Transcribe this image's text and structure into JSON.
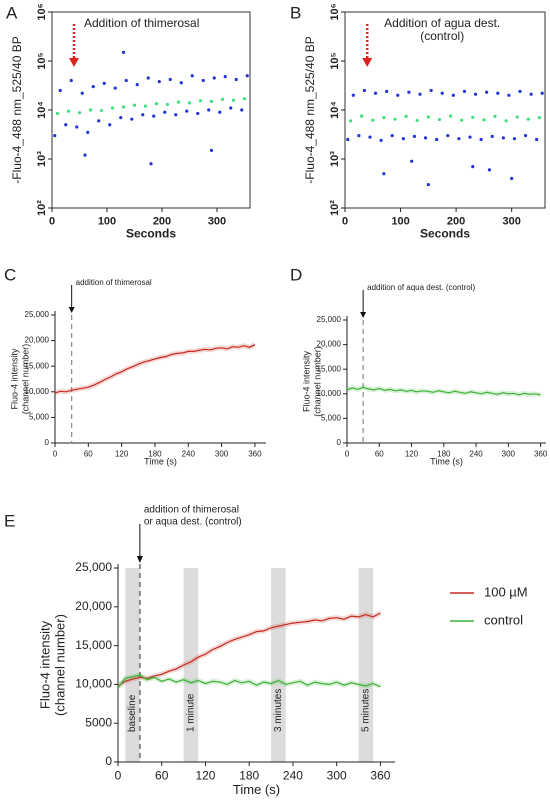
{
  "chart_data": [
    {
      "type": "scatter",
      "panel": "A",
      "annotation": "Addition of thimerosal",
      "arrow_x": 40,
      "frame": true,
      "log_y": true,
      "x_label": "Seconds",
      "y_label": "-Fluo-4_488 nm_525/40 BP",
      "xlim": [
        0,
        360
      ],
      "xticks": [
        0,
        100,
        200,
        300
      ],
      "ylim": [
        100,
        1000000
      ],
      "yticks": [
        {
          "value": 100,
          "label": "10²"
        },
        {
          "value": 1000,
          "label": "10³"
        },
        {
          "value": 10000,
          "label": "10⁴"
        },
        {
          "value": 100000,
          "label": "10⁵"
        },
        {
          "value": 1000000,
          "label": "10⁶"
        }
      ],
      "series": [
        {
          "color": "#1f35d8",
          "x": [
            5,
            15,
            25,
            35,
            45,
            55,
            65,
            75,
            85,
            95,
            105,
            115,
            125,
            135,
            145,
            155,
            165,
            175,
            185,
            195,
            205,
            215,
            225,
            235,
            245,
            255,
            265,
            275,
            285,
            295,
            305,
            315,
            325,
            335,
            345,
            355,
            180,
            290,
            60,
            130
          ],
          "values": [
            3000,
            25000,
            5000,
            40000,
            4500,
            22000,
            3500,
            30000,
            6000,
            35000,
            5000,
            28000,
            7000,
            40000,
            6500,
            33000,
            8000,
            45000,
            7500,
            38000,
            9000,
            42000,
            8000,
            36000,
            9500,
            50000,
            8500,
            40000,
            10000,
            45000,
            9000,
            48000,
            11000,
            42000,
            10000,
            50000,
            800,
            1500,
            1200,
            150000
          ]
        },
        {
          "color": "#3fe07a",
          "x": [
            10,
            30,
            50,
            70,
            90,
            110,
            130,
            150,
            170,
            190,
            210,
            230,
            250,
            270,
            290,
            310,
            330,
            350
          ],
          "values": [
            8500,
            9500,
            8800,
            10000,
            9800,
            11000,
            11500,
            12500,
            12000,
            13500,
            13000,
            14500,
            14000,
            15500,
            15000,
            16500,
            15800,
            17000
          ]
        }
      ]
    },
    {
      "type": "scatter",
      "panel": "B",
      "annotation": [
        "Addition of agua dest.",
        "(control)"
      ],
      "arrow_x": 40,
      "frame": true,
      "log_y": true,
      "x_label": "Seconds",
      "y_label": "-Fluo-4_488 nm_525/40 BP",
      "xlim": [
        0,
        360
      ],
      "xticks": [
        0,
        100,
        200,
        300
      ],
      "ylim": [
        100,
        1000000
      ],
      "yticks": [
        {
          "value": 100,
          "label": "10²"
        },
        {
          "value": 1000,
          "label": "10³"
        },
        {
          "value": 10000,
          "label": "10⁴"
        },
        {
          "value": 100000,
          "label": "10⁵"
        },
        {
          "value": 1000000,
          "label": "10⁶"
        }
      ],
      "series": [
        {
          "color": "#1f35d8",
          "x": [
            5,
            15,
            25,
            35,
            45,
            55,
            65,
            75,
            85,
            95,
            105,
            115,
            125,
            135,
            145,
            155,
            165,
            175,
            185,
            195,
            205,
            215,
            225,
            235,
            245,
            255,
            265,
            275,
            285,
            295,
            305,
            315,
            325,
            335,
            345,
            355,
            70,
            150,
            230,
            300,
            120,
            260
          ],
          "values": [
            2500,
            20000,
            3000,
            25000,
            2800,
            22000,
            2400,
            24000,
            3000,
            20000,
            2600,
            23000,
            2900,
            21000,
            2700,
            25000,
            2500,
            22000,
            3000,
            20000,
            2600,
            24000,
            2800,
            21000,
            2500,
            23000,
            2900,
            22000,
            2700,
            20000,
            2600,
            24000,
            3000,
            21000,
            2500,
            22000,
            500,
            300,
            700,
            400,
            900,
            600
          ]
        },
        {
          "color": "#3fe07a",
          "x": [
            10,
            30,
            50,
            70,
            90,
            110,
            130,
            150,
            170,
            190,
            210,
            230,
            250,
            270,
            290,
            310,
            330,
            350
          ],
          "values": [
            6000,
            7500,
            6200,
            7000,
            6500,
            7400,
            6100,
            7200,
            6400,
            7500,
            6200,
            7100,
            6300,
            7400,
            6000,
            7200,
            6500,
            7000
          ]
        }
      ]
    },
    {
      "type": "line",
      "panel": "C",
      "annotation": "addition of thimerosal",
      "vline": 30,
      "x_label": "Time (s)",
      "y_label": [
        "Fluo-4 intensity",
        "(channel number)"
      ],
      "xlim": [
        0,
        380
      ],
      "xticks": [
        0,
        60,
        120,
        180,
        240,
        300,
        360
      ],
      "ylim": [
        0,
        25000
      ],
      "yticks": [
        0,
        {
          "value": 5000,
          "label": "5,000"
        },
        {
          "value": 10000,
          "label": "10,000"
        },
        {
          "value": 15000,
          "label": "15,000"
        },
        {
          "value": 20000,
          "label": "20,000"
        },
        {
          "value": 25000,
          "label": "25,000"
        }
      ],
      "x": [
        0,
        10,
        20,
        30,
        40,
        50,
        60,
        70,
        80,
        90,
        100,
        110,
        120,
        130,
        140,
        150,
        160,
        170,
        180,
        190,
        200,
        210,
        220,
        230,
        240,
        250,
        260,
        270,
        280,
        290,
        300,
        310,
        320,
        330,
        340,
        350,
        360
      ],
      "series": [
        {
          "color": "#c8281e",
          "values": [
            9800,
            10100,
            10000,
            10300,
            10500,
            10700,
            10900,
            11300,
            11800,
            12400,
            12900,
            13500,
            13900,
            14500,
            14900,
            15400,
            15800,
            16100,
            16400,
            16700,
            16900,
            17300,
            17500,
            17600,
            17900,
            17900,
            18100,
            18300,
            18200,
            18500,
            18600,
            18400,
            18800,
            18700,
            19000,
            18700,
            19200
          ]
        }
      ]
    },
    {
      "type": "line",
      "panel": "D",
      "annotation": "addition of aqua dest. (control)",
      "vline": 30,
      "x_label": "Time (s)",
      "y_label": [
        "Fluo-4 intensity",
        "(channel number)"
      ],
      "xlim": [
        0,
        370
      ],
      "xticks": [
        0,
        60,
        120,
        180,
        240,
        300,
        360
      ],
      "ylim": [
        0,
        25000
      ],
      "yticks": [
        0,
        {
          "value": 5000,
          "label": "5,000"
        },
        {
          "value": 10000,
          "label": "10,000"
        },
        {
          "value": 15000,
          "label": "15,000"
        },
        {
          "value": 20000,
          "label": "20,000"
        },
        {
          "value": 25000,
          "label": "25,000"
        }
      ],
      "x": [
        0,
        10,
        20,
        30,
        40,
        50,
        60,
        70,
        80,
        90,
        100,
        110,
        120,
        130,
        140,
        150,
        160,
        170,
        180,
        190,
        200,
        210,
        220,
        230,
        240,
        250,
        260,
        270,
        280,
        290,
        300,
        310,
        320,
        330,
        340,
        350,
        360
      ],
      "series": [
        {
          "color": "#3cb035",
          "values": [
            10800,
            11200,
            10900,
            11300,
            11000,
            10800,
            11100,
            10700,
            10900,
            10600,
            10800,
            10500,
            10700,
            10400,
            10600,
            10500,
            10300,
            10600,
            10400,
            10200,
            10500,
            10300,
            10100,
            10400,
            10200,
            10000,
            10300,
            10100,
            9900,
            10200,
            10000,
            10100,
            9800,
            10100,
            9900,
            10000,
            9800
          ]
        }
      ]
    },
    {
      "type": "line",
      "panel": "E",
      "annotation": [
        "addition of thimerosal",
        "or aqua dest. (control)"
      ],
      "vline": 30,
      "legend": "right",
      "x_label": "Time (s)",
      "y_label": [
        "Fluo-4 intensity",
        "(channel number)"
      ],
      "xlim": [
        0,
        380
      ],
      "xticks": [
        0,
        60,
        120,
        180,
        240,
        300,
        360
      ],
      "ylim": [
        0,
        25000
      ],
      "yticks": [
        0,
        5000,
        {
          "value": 10000,
          "label": "10,000"
        },
        {
          "value": 15000,
          "label": "15,000"
        },
        {
          "value": 20000,
          "label": "20,000"
        },
        {
          "value": 25000,
          "label": "25,000"
        }
      ],
      "shaded": [
        {
          "x": [
            10,
            30
          ],
          "label": "baseline"
        },
        {
          "x": [
            90,
            110
          ],
          "label": "1 minute"
        },
        {
          "x": [
            210,
            230
          ],
          "label": "3 minutes"
        },
        {
          "x": [
            330,
            350
          ],
          "label": "5 minutes"
        }
      ],
      "x": [
        0,
        10,
        20,
        30,
        40,
        50,
        60,
        70,
        80,
        90,
        100,
        110,
        120,
        130,
        140,
        150,
        160,
        170,
        180,
        190,
        200,
        210,
        220,
        230,
        240,
        250,
        260,
        270,
        280,
        290,
        300,
        310,
        320,
        330,
        340,
        350,
        360
      ],
      "series": [
        {
          "name": "100 µM",
          "color": "#c8281e",
          "values": [
            9800,
            10400,
            10700,
            10900,
            10800,
            11100,
            11300,
            11700,
            12000,
            12500,
            12900,
            13500,
            13900,
            14500,
            14900,
            15400,
            15800,
            16100,
            16400,
            16800,
            16900,
            17300,
            17500,
            17700,
            17900,
            18000,
            18100,
            18300,
            18200,
            18500,
            18600,
            18400,
            18800,
            18700,
            19000,
            18700,
            19200
          ]
        },
        {
          "name": "control",
          "color": "#3cb035",
          "values": [
            9600,
            10800,
            11000,
            11200,
            10600,
            10900,
            10400,
            10700,
            10300,
            10600,
            10200,
            10500,
            10100,
            10400,
            10300,
            10000,
            10500,
            10200,
            10400,
            9900,
            10300,
            10100,
            10500,
            10000,
            10200,
            10400,
            9900,
            10300,
            10100,
            10000,
            10300,
            9900,
            10200,
            10000,
            9800,
            10100,
            9700
          ]
        }
      ]
    }
  ]
}
